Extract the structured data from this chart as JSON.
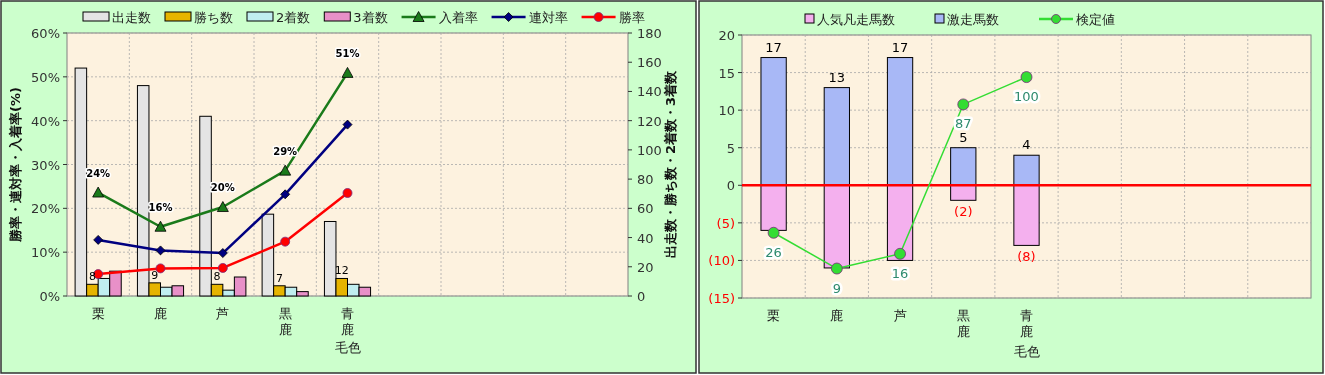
{
  "chart_data": [
    {
      "type": "bar",
      "categories": [
        "栗",
        "鹿",
        "芦",
        "黒鹿",
        "青鹿",
        null,
        null,
        null,
        null
      ],
      "xlabel": "毛色",
      "ylabel": "勝率・連対率・入着率(%)",
      "y2label": "出走数・勝ち数・2着数・3着数",
      "ylim": [
        0,
        60
      ],
      "yticks": [
        {
          "value": 0,
          "label": "0%"
        },
        {
          "value": 10,
          "label": "10%"
        },
        {
          "value": 20,
          "label": "20%"
        },
        {
          "value": 30,
          "label": "30%"
        },
        {
          "value": 40,
          "label": "40%"
        },
        {
          "value": 50,
          "label": "50%"
        },
        {
          "value": 60,
          "label": "60%"
        }
      ],
      "y2lim": [
        0,
        180
      ],
      "y2ticks": [
        0,
        20,
        40,
        60,
        80,
        100,
        120,
        140,
        160,
        180
      ],
      "grid": true,
      "legend": "top",
      "series": [
        {
          "name": "出走数",
          "axis": "y2",
          "color": "#e4e4e4",
          "values": [
            156,
            144,
            123,
            56,
            51,
            null,
            null,
            null,
            null
          ]
        },
        {
          "name": "勝ち数",
          "axis": "y2",
          "color": "#e6b400",
          "values": [
            8,
            9,
            8,
            7,
            12,
            null,
            null,
            null,
            null
          ],
          "value_labels": [
            "8",
            "9",
            "8",
            "7",
            "12",
            null,
            null,
            null,
            null
          ]
        },
        {
          "name": "2着数",
          "axis": "y2",
          "color": "#c0eef0",
          "values": [
            12,
            6,
            4,
            6,
            8,
            null,
            null,
            null,
            null
          ]
        },
        {
          "name": "3着数",
          "axis": "y2",
          "color": "#e890c8",
          "values": [
            17,
            7,
            13,
            3,
            6,
            null,
            null,
            null,
            null
          ]
        },
        {
          "name": "入着率",
          "type": "line",
          "color": "#1a7a1a",
          "marker": "triangle",
          "values": [
            23.6,
            15.8,
            20.3,
            28.6,
            50.9,
            null,
            null,
            null,
            null
          ],
          "value_labels": [
            "24%",
            "16%",
            "20%",
            "29%",
            "51%",
            null,
            null,
            null,
            null
          ]
        },
        {
          "name": "連対率",
          "type": "line",
          "color": "#000080",
          "marker": "diamond",
          "values": [
            12.8,
            10.4,
            9.8,
            23.2,
            39.1,
            null,
            null,
            null,
            null
          ]
        },
        {
          "name": "勝率",
          "type": "line",
          "color": "#ff0000",
          "marker": "circle",
          "values": [
            5.0,
            6.3,
            6.4,
            12.4,
            23.5,
            null,
            null,
            null,
            null
          ]
        }
      ]
    },
    {
      "type": "bar",
      "stacked": true,
      "categories": [
        "栗",
        "鹿",
        "芦",
        "黒鹿",
        "青鹿",
        null,
        null,
        null,
        null
      ],
      "xlabel": "毛色",
      "ylim": [
        -15,
        20
      ],
      "yticks": [
        {
          "value": -15,
          "label": "(15)"
        },
        {
          "value": -10,
          "label": "(10)"
        },
        {
          "value": -5,
          "label": "(5)"
        },
        0,
        5,
        10,
        15,
        20
      ],
      "y2lim": [
        -5,
        120
      ],
      "grid": true,
      "legend": "top",
      "ref_lines": [
        {
          "axis": "y",
          "value": 0,
          "color": "#ff0000"
        }
      ],
      "series": [
        {
          "name": "人気凡走馬数",
          "color": "#f4b0ee",
          "values": [
            -6,
            -11,
            -10,
            -2,
            -8,
            null,
            null,
            null,
            null
          ],
          "value_labels": [
            null,
            null,
            null,
            "(2)",
            "(8)",
            null,
            null,
            null,
            null
          ]
        },
        {
          "name": "激走馬数",
          "color": "#a8b8f6",
          "values": [
            17,
            13,
            17,
            5,
            4,
            null,
            null,
            null,
            null
          ],
          "value_labels": [
            "17",
            "13",
            "17",
            "5",
            "4",
            null,
            null,
            null,
            null
          ]
        },
        {
          "name": "検定値",
          "type": "line",
          "axis": "y2",
          "color": "#33dd33",
          "marker": "circle",
          "values": [
            26,
            9,
            16,
            87,
            100,
            null,
            null,
            null,
            null
          ],
          "value_labels": [
            "26",
            "9",
            "16",
            "87",
            "100",
            null,
            null,
            null,
            null
          ]
        }
      ]
    }
  ]
}
